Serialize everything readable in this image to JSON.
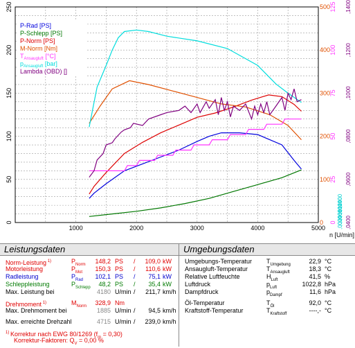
{
  "chart_data": {
    "type": "line",
    "x_axis": {
      "label": "n [U/min]",
      "range": [
        0,
        5000
      ],
      "ticks": [
        "0",
        "1000",
        "2000",
        "3000",
        "4000",
        "5000"
      ]
    },
    "y_axis_left": {
      "range": [
        0,
        250
      ],
      "ticks": [
        "0",
        "50",
        "100",
        "150",
        "200",
        "250"
      ]
    },
    "y_axis_torque": {
      "range": [
        0,
        500
      ],
      "ticks": [
        "0",
        "100",
        "200",
        "300",
        "400",
        "500"
      ],
      "color": "#e05000"
    },
    "y_axis_temp": {
      "range": [
        0,
        125
      ],
      "ticks": [
        "0",
        "25",
        "50",
        "75",
        "100",
        "125"
      ],
      "color": "#ff33ff"
    },
    "y_axis_pressure": {
      "range": [
        0,
        1.4
      ],
      "ticks": [
        ",0000",
        ",0200",
        ",0400",
        ",0600",
        ",0800",
        ",1000",
        ",1200",
        ",1400"
      ],
      "color": "#00d0d0"
    },
    "y_axis_lambda": {
      "range": [
        0.04,
        0.14
      ],
      "ticks": [
        ",0400",
        ",0600",
        ",0800",
        ",1000",
        ",1200",
        ",1400"
      ],
      "color": "#800080"
    },
    "grid": true,
    "legend_position": "top-left",
    "legend": [
      {
        "label": "P-Rad [PS]",
        "color": "#0000dd"
      },
      {
        "label": "P-Schlepp [PS]",
        "color": "#007700"
      },
      {
        "label": "P-Norm [PS]",
        "color": "#dd0000"
      },
      {
        "label": "M-Norm [Nm]",
        "color": "#e05000"
      },
      {
        "label": "T",
        "sub": "Ansaugluft",
        "unit": " [°C]",
        "color": "#ff33ff"
      },
      {
        "label": "p",
        "sub": "Ansaugluft",
        "unit": " [bar]",
        "color": "#00dddd"
      },
      {
        "label": "Lambda (OBD) []",
        "color": "#800080"
      }
    ],
    "series": [
      {
        "name": "P-Rad [PS]",
        "axis": "left",
        "color": "#0000dd",
        "x": [
          1220,
          1300,
          1500,
          1800,
          2100,
          2400,
          2700,
          3000,
          3200,
          3400,
          3700,
          4000,
          4200,
          4400,
          4600,
          4720
        ],
        "y": [
          28,
          34,
          45,
          60,
          68,
          76,
          84,
          94,
          100,
          104,
          104,
          102,
          96,
          90,
          72,
          62
        ]
      },
      {
        "name": "P-Schlepp [PS]",
        "axis": "left",
        "color": "#007700",
        "x": [
          1220,
          1600,
          2000,
          2400,
          2800,
          3200,
          3600,
          4000,
          4400,
          4720
        ],
        "y": [
          7,
          10,
          13,
          17,
          22,
          28,
          36,
          44,
          52,
          61
        ]
      },
      {
        "name": "P-Norm [PS]",
        "axis": "left",
        "color": "#dd0000",
        "x": [
          1220,
          1300,
          1500,
          1800,
          2100,
          2400,
          2700,
          3000,
          3300,
          3600,
          3900,
          4180,
          4400,
          4600,
          4720
        ],
        "y": [
          33,
          42,
          58,
          80,
          93,
          104,
          113,
          122,
          127,
          134,
          142,
          148,
          146,
          137,
          129
        ]
      },
      {
        "name": "M-Norm [Nm]",
        "axis": "torque",
        "color": "#e05000",
        "x": [
          1220,
          1400,
          1600,
          1885,
          2200,
          2600,
          3000,
          3400,
          3800,
          4200,
          4500,
          4720
        ],
        "y": [
          230,
          270,
          310,
          328.9,
          320,
          305,
          290,
          275,
          268,
          250,
          225,
          192
        ]
      },
      {
        "name": "T Ansaugluft [°C]",
        "axis": "temp",
        "color": "#ff33ff",
        "x": [
          1220,
          1800,
          1850,
          2000,
          2050,
          2300,
          2350,
          2600,
          2650,
          2900,
          2950,
          3200,
          3250,
          3500,
          3550,
          3800,
          3850,
          4100,
          4150,
          4400,
          4450,
          4720
        ],
        "y": [
          30,
          30,
          33,
          33,
          36,
          36,
          39,
          39,
          42,
          42,
          45,
          45,
          48,
          48,
          51,
          51,
          54,
          54,
          57,
          57,
          60,
          60
        ]
      },
      {
        "name": "p Ansaugluft [bar]",
        "axis": "pressure",
        "color": "#00dddd",
        "x": [
          1220,
          1300,
          1350,
          1500,
          1600,
          1700,
          1800,
          2000,
          2200,
          2500,
          3000,
          3500,
          4000,
          4300,
          4500,
          4720
        ],
        "y": [
          0.62,
          0.78,
          0.88,
          1.02,
          1.12,
          1.2,
          1.24,
          1.25,
          1.24,
          1.21,
          1.18,
          1.13,
          1.02,
          0.9,
          0.84,
          0.78
        ]
      },
      {
        "name": "Lambda (OBD) []",
        "axis": "lambda",
        "color": "#800080",
        "x": [
          1220,
          1300,
          1350,
          1450,
          1500,
          1600,
          1650,
          1750,
          1800,
          1900,
          1950,
          2100,
          2200,
          2400,
          2500,
          2700,
          2800,
          2900,
          3000,
          3050,
          3150,
          3200,
          3300,
          3350,
          3400,
          3450,
          3500,
          3550,
          3600,
          3700,
          3800,
          3900,
          3950,
          4000,
          4050,
          4100,
          4150,
          4200,
          4300,
          4400,
          4450,
          4500,
          4550,
          4600,
          4650,
          4720
        ],
        "y": [
          0.061,
          0.064,
          0.069,
          0.072,
          0.076,
          0.077,
          0.079,
          0.082,
          0.083,
          0.084,
          0.086,
          0.085,
          0.088,
          0.09,
          0.091,
          0.092,
          0.094,
          0.091,
          0.095,
          0.091,
          0.096,
          0.093,
          0.097,
          0.09,
          0.098,
          0.092,
          0.096,
          0.089,
          0.094,
          0.092,
          0.095,
          0.088,
          0.094,
          0.09,
          0.095,
          0.091,
          0.096,
          0.09,
          0.094,
          0.098,
          0.092,
          0.1,
          0.097,
          0.102,
          0.096,
          0.097
        ]
      }
    ]
  },
  "leistungsdaten": {
    "title": "Leistungsdaten",
    "rows": [
      {
        "label": "Norm-Leistung",
        "marker": "1)",
        "sym": "P",
        "sub": "Norm",
        "v1": "148,2",
        "u1": "PS",
        "sep": "/",
        "v2": "109,0",
        "u2": "kW",
        "color": "red"
      },
      {
        "label": "Motorleistung",
        "sym": "P",
        "sub": "Mot",
        "v1": "150,3",
        "u1": "PS",
        "sep": "/",
        "v2": "110,6",
        "u2": "kW",
        "color": "red"
      },
      {
        "label": "Radleistung",
        "sym": "P",
        "sub": "Rad",
        "v1": "102,1",
        "u1": "PS",
        "sep": "/",
        "v2": "75,1",
        "u2": "kW",
        "color": "blue"
      },
      {
        "label": "Schleppleistung",
        "sym": "P",
        "sub": "Schlepp",
        "v1": "48,2",
        "u1": "PS",
        "sep": "/",
        "v2": "35,4",
        "u2": "kW",
        "color": "green"
      },
      {
        "label": "Max. Leistung bei",
        "v1": "4180",
        "u1": "U/min",
        "sep": "/",
        "v2": "211,7",
        "u2": "km/h",
        "color": "black"
      }
    ],
    "torque_rows": [
      {
        "label": "Drehmoment",
        "marker": "1)",
        "sym": "M",
        "sub": "Norm",
        "v1": "328,9",
        "u1": "Nm",
        "color": "red"
      },
      {
        "label": "Max. Drehmoment bei",
        "v1": "1885",
        "u1": "U/min",
        "sep": "/",
        "v2": "94,5",
        "u2": "km/h",
        "color": "black"
      }
    ],
    "speed_row": {
      "label": "Max. erreichte Drehzahl",
      "v1": "4715",
      "u1": "U/min",
      "sep": "/",
      "v2": "239,0",
      "u2": "km/h"
    },
    "footnote1": {
      "marker": "1)",
      "text": "Korrektur nach EWG 80/1269 (f",
      "sub": "m",
      "text2": " = 0,30)"
    },
    "footnote2": {
      "text": "Korrektur-Faktoren: Q",
      "sub": "V",
      "text2": " =   0,00 %"
    }
  },
  "umgebungsdaten": {
    "title": "Umgebungsdaten",
    "rows": [
      {
        "label": "Umgebungs-Temperatur",
        "sym": "T",
        "sub": "Umgebung",
        "value": "22,9",
        "unit": "°C"
      },
      {
        "label": "Ansaugluft-Temperatur",
        "sym": "T",
        "sub": "Ansaugluft",
        "value": "18,3",
        "unit": "°C"
      },
      {
        "label": "Relative Luftfeuchte",
        "sym": "H",
        "sub": "Luft",
        "value": "41,5",
        "unit": "%"
      },
      {
        "label": "Luftdruck",
        "sym": "p",
        "sub": "Luft",
        "value": "1022,8",
        "unit": "hPa"
      },
      {
        "label": "Dampfdruck",
        "sym": "p",
        "sub": "Dampf",
        "value": "11,6",
        "unit": "hPa"
      }
    ],
    "rows2": [
      {
        "label": "Öl-Temperatur",
        "sym": "T",
        "sub": "Öl",
        "value": "92,0",
        "unit": "°C"
      },
      {
        "label": "Kraftstoff-Temperatur",
        "sym": "T",
        "sub": "Kraftstoff",
        "value": "----,-",
        "unit": "°C"
      }
    ]
  }
}
